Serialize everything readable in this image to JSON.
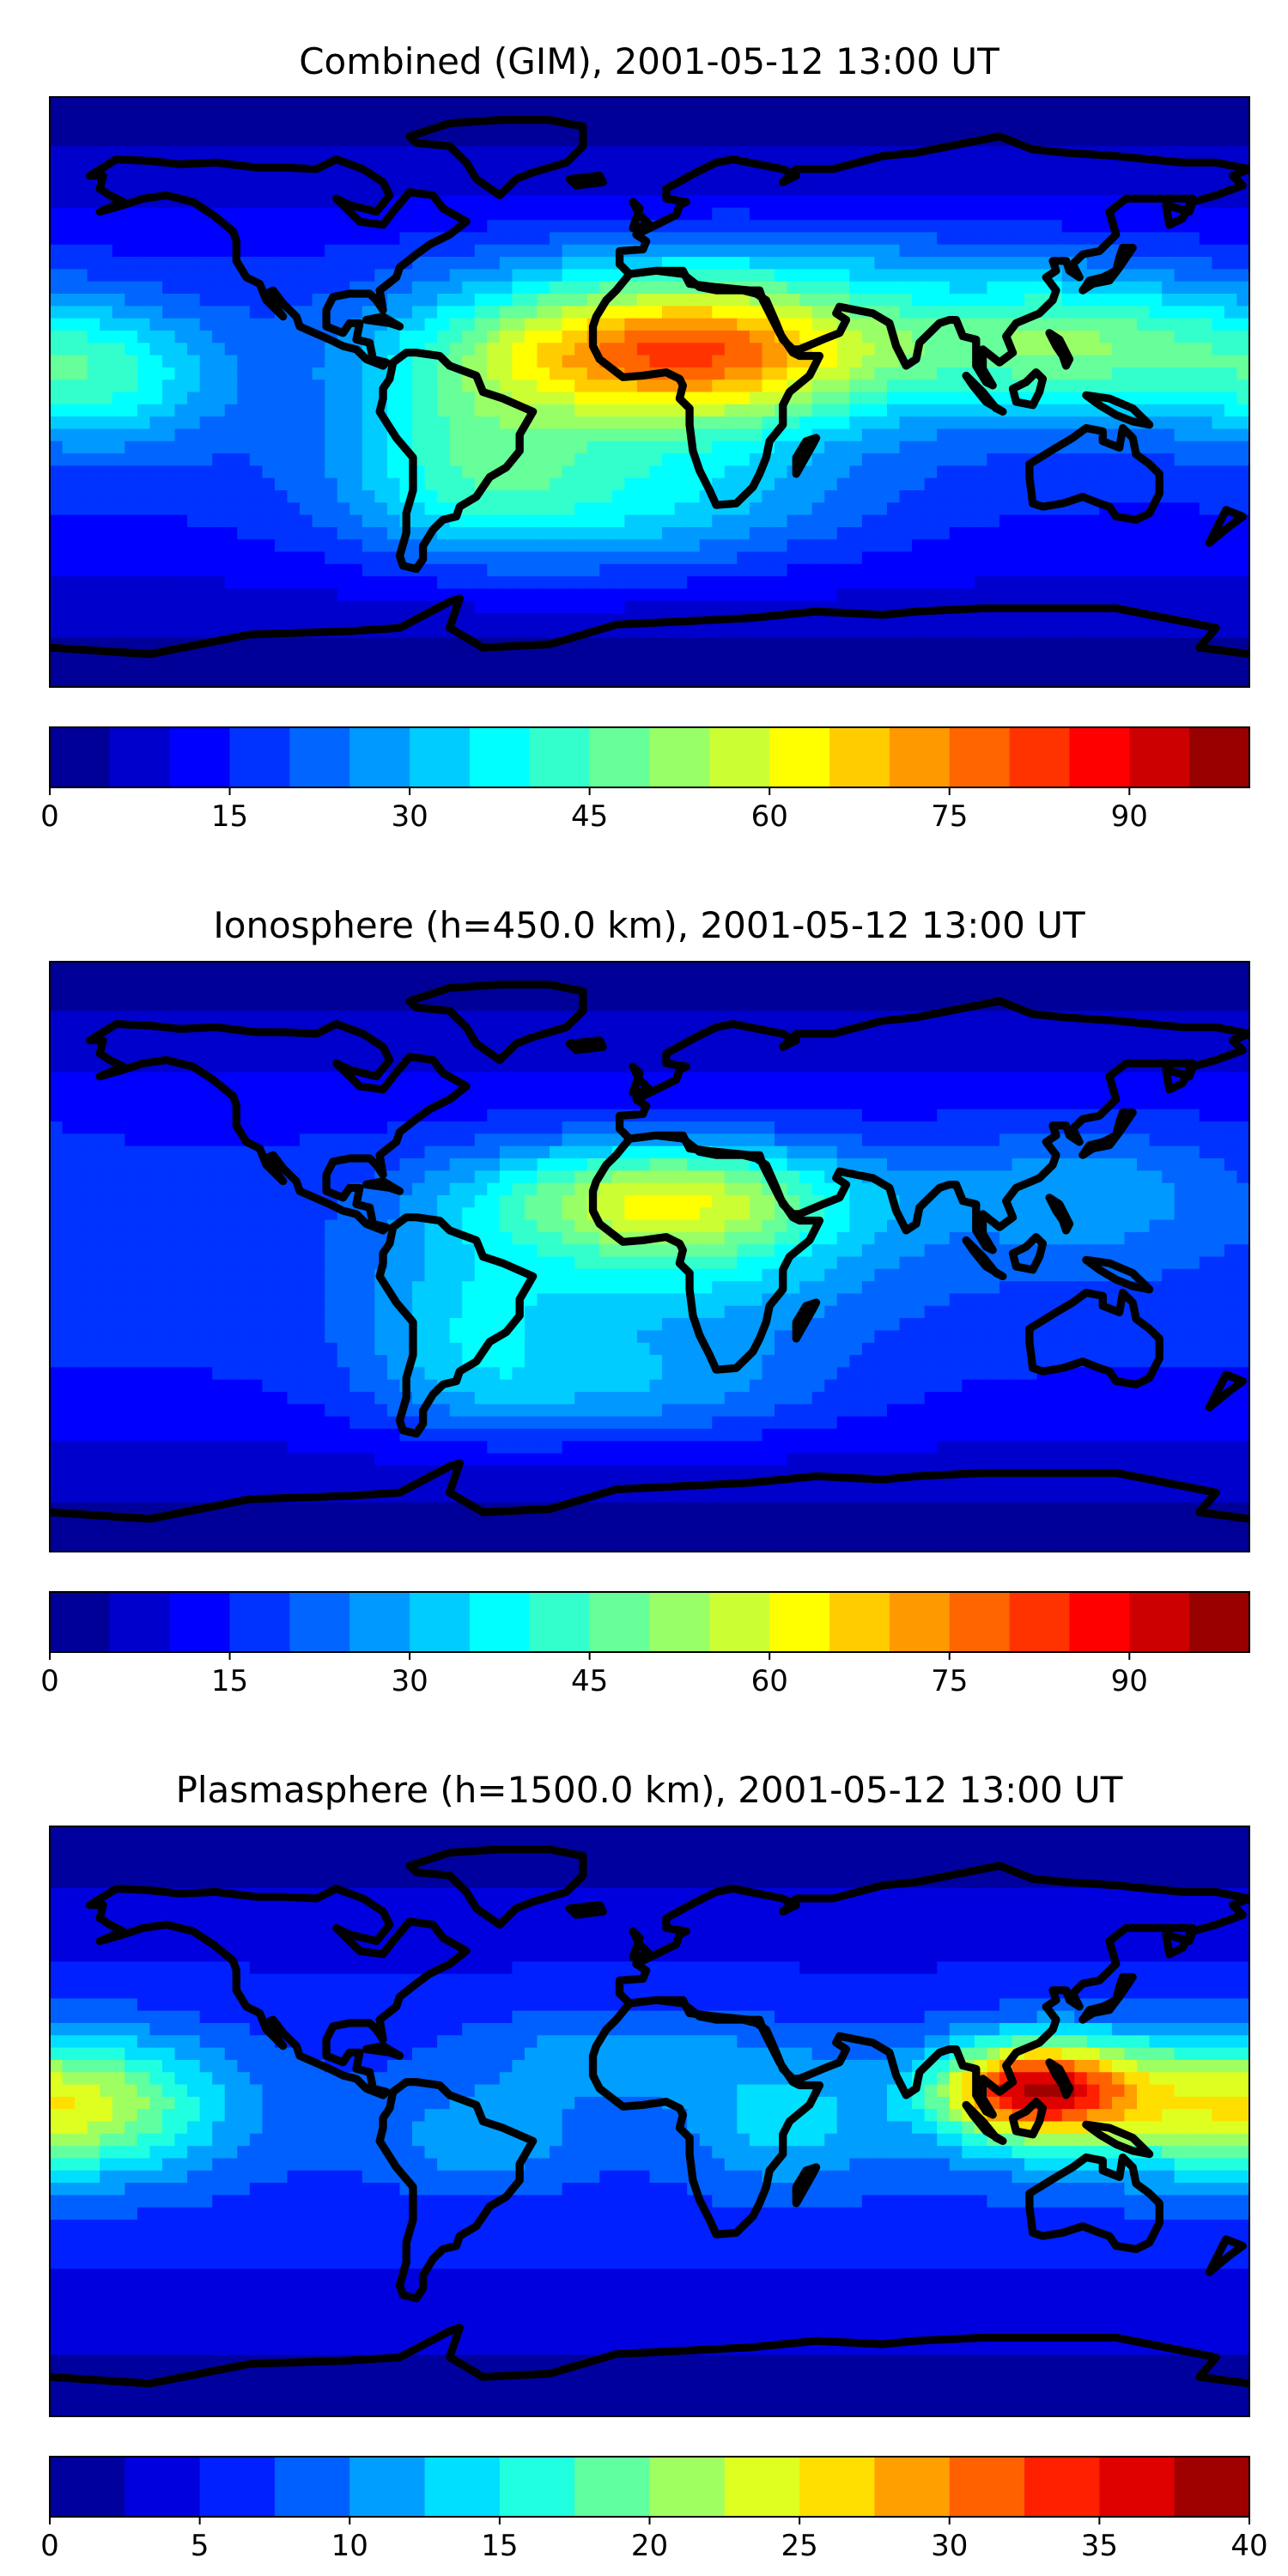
{
  "panels": [
    {
      "title": "Combined (GIM), 2001-05-12 13:00 UT",
      "colorbar": {
        "min": 0,
        "max": 100,
        "levels": 20,
        "tick_values": [
          0,
          15,
          30,
          45,
          60,
          75,
          90
        ],
        "tick_labels": [
          "0",
          "15",
          "30",
          "45",
          "60",
          "75",
          "90"
        ]
      },
      "blobs": [
        {
          "lon": 10,
          "lat": 15,
          "sx": 50,
          "sy": 14,
          "amp": 50
        },
        {
          "lon": 10,
          "lat": 0,
          "sx": 40,
          "sy": 16,
          "amp": 20
        },
        {
          "lon": -55,
          "lat": -15,
          "sx": 25,
          "sy": 20,
          "amp": 18
        },
        {
          "lon": -15,
          "lat": -35,
          "sx": 50,
          "sy": 15,
          "amp": 20
        },
        {
          "lon": 130,
          "lat": 15,
          "sx": 35,
          "sy": 15,
          "amp": 30
        },
        {
          "lon": -165,
          "lat": 5,
          "sx": 25,
          "sy": 15,
          "amp": 22
        },
        {
          "lon": 30,
          "lat": 40,
          "sx": 60,
          "sy": 10,
          "amp": 10
        }
      ]
    },
    {
      "title": "Ionosphere  (h=450.0 km), 2001-05-12 13:00 UT",
      "colorbar": {
        "min": 0,
        "max": 100,
        "levels": 20,
        "tick_values": [
          0,
          15,
          30,
          45,
          60,
          75,
          90
        ],
        "tick_labels": [
          "0",
          "15",
          "30",
          "45",
          "60",
          "75",
          "90"
        ]
      },
      "blobs": [
        {
          "lon": 5,
          "lat": 18,
          "sx": 40,
          "sy": 12,
          "amp": 40
        },
        {
          "lon": 10,
          "lat": -5,
          "sx": 40,
          "sy": 15,
          "amp": 15
        },
        {
          "lon": -55,
          "lat": -20,
          "sx": 22,
          "sy": 20,
          "amp": 14
        },
        {
          "lon": -10,
          "lat": -40,
          "sx": 45,
          "sy": 12,
          "amp": 15
        },
        {
          "lon": 130,
          "lat": 20,
          "sx": 30,
          "sy": 15,
          "amp": 12
        }
      ]
    },
    {
      "title": "Plasmasphere (h=1500.0 km), 2001-05-12 13:00 UT",
      "colorbar": {
        "min": 0,
        "max": 40,
        "levels": 16,
        "tick_values": [
          0,
          5,
          10,
          15,
          20,
          25,
          30,
          35,
          40
        ],
        "tick_labels": [
          "0",
          "5",
          "10",
          "15",
          "20",
          "25",
          "30",
          "35",
          "40"
        ]
      },
      "blobs": [
        {
          "lon": 115,
          "lat": 10,
          "sx": 20,
          "sy": 10,
          "amp": 24
        },
        {
          "lon": 145,
          "lat": 5,
          "sx": 40,
          "sy": 15,
          "amp": 10
        },
        {
          "lon": -170,
          "lat": 5,
          "sx": 30,
          "sy": 15,
          "amp": 12
        },
        {
          "lon": 40,
          "lat": 0,
          "sx": 20,
          "sy": 15,
          "amp": 6
        },
        {
          "lon": -50,
          "lat": -5,
          "sx": 20,
          "sy": 10,
          "amp": 5
        },
        {
          "lon": -10,
          "lat": 20,
          "sx": 30,
          "sy": 10,
          "amp": 5
        }
      ]
    }
  ],
  "colormap": "jet"
}
